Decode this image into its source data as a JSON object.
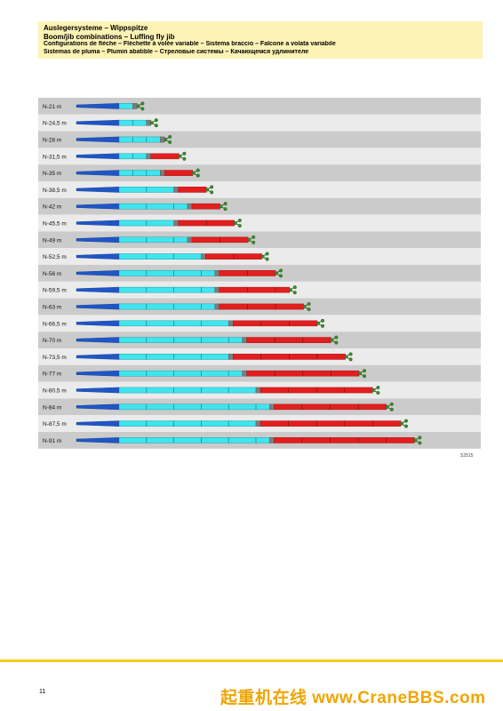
{
  "header": {
    "line1": "Auslegersysteme – Wippspitze",
    "line2": "Boom/jib combinations – Luffing fly jib",
    "line3": "Configurations de flèche – Fléchette à volée variable – Sistema braccio – Falcone a volata variabile",
    "line4": "Sistemas de pluma – Plumin abatible – Стреловые системы – Качающемся удлинителе"
  },
  "drawing_code": "S2515",
  "page_number": "11",
  "watermark": "起重机在线 www.CraneBBS.com",
  "colors": {
    "band_light": "#ebebeb",
    "band_dark": "#cbcbcb",
    "base": "#1f56c6",
    "main_boom": "#3fe5ee",
    "adapter": "#7d7d7d",
    "fly_jib": "#e31e1e",
    "head": "#3c8a2e",
    "page_rule": "#f3cf1a",
    "watermark": "#f0a500"
  },
  "configs": [
    {
      "label": "N-21 m",
      "cyan": 1,
      "red": 0
    },
    {
      "label": "N-24,5 m",
      "cyan": 2,
      "red": 0
    },
    {
      "label": "N-28 m",
      "cyan": 3,
      "red": 0
    },
    {
      "label": "N-31,5 m",
      "cyan": 2,
      "red": 2
    },
    {
      "label": "N-35 m",
      "cyan": 3,
      "red": 2
    },
    {
      "label": "N-38,5 m",
      "cyan": 4,
      "red": 2
    },
    {
      "label": "N-42 m",
      "cyan": 5,
      "red": 2
    },
    {
      "label": "N-45,5 m",
      "cyan": 4,
      "red": 4
    },
    {
      "label": "N-49 m",
      "cyan": 5,
      "red": 4
    },
    {
      "label": "N-52,5 m",
      "cyan": 6,
      "red": 4
    },
    {
      "label": "N-56 m",
      "cyan": 7,
      "red": 4
    },
    {
      "label": "N-59,5 m",
      "cyan": 7,
      "red": 5
    },
    {
      "label": "N-63 m",
      "cyan": 7,
      "red": 6
    },
    {
      "label": "N-66,5 m",
      "cyan": 8,
      "red": 6
    },
    {
      "label": "N-70 m",
      "cyan": 9,
      "red": 6
    },
    {
      "label": "N-73,5 m",
      "cyan": 8,
      "red": 8
    },
    {
      "label": "N-77 m",
      "cyan": 9,
      "red": 8
    },
    {
      "label": "N-80,5 m",
      "cyan": 10,
      "red": 8
    },
    {
      "label": "N-84 m",
      "cyan": 11,
      "red": 8
    },
    {
      "label": "N-87,5 m",
      "cyan": 10,
      "red": 10
    },
    {
      "label": "N-91 m",
      "cyan": 11,
      "red": 10
    }
  ]
}
